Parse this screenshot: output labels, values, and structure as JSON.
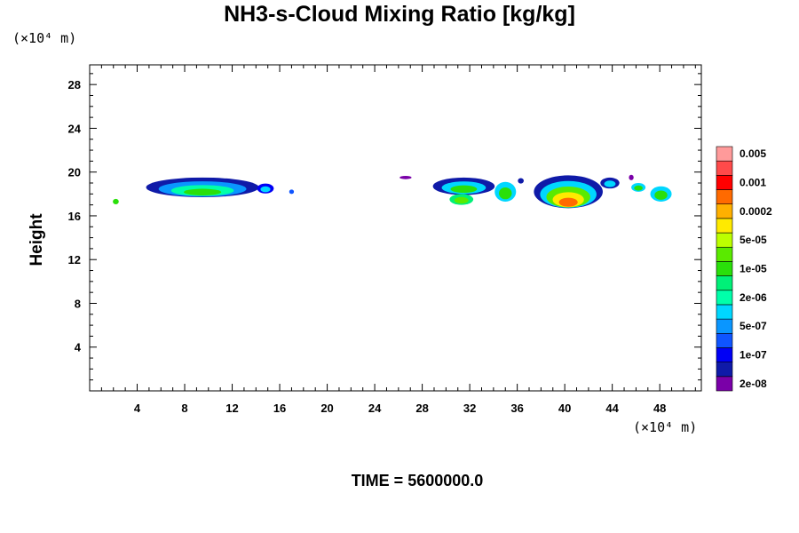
{
  "chart_data": {
    "type": "heatmap",
    "title": "NH3-s-Cloud Mixing Ratio [kg/kg]",
    "xunit": "(×10⁴ m)",
    "yunit": "(×10⁴ m)",
    "xlabel": "",
    "ylabel": "Height",
    "xlim": [
      0,
      51.5
    ],
    "ylim": [
      0,
      29.8
    ],
    "xticks": [
      4,
      8,
      12,
      16,
      20,
      24,
      28,
      32,
      36,
      40,
      44,
      48
    ],
    "yticks": [
      4,
      8,
      12,
      16,
      20,
      24,
      28
    ],
    "colorbar": {
      "levels": [
        {
          "color": "#7a00a8",
          "label": "2e-08"
        },
        {
          "color": "#0f1aa8",
          "label": ""
        },
        {
          "color": "#0000f5",
          "label": "1e-07"
        },
        {
          "color": "#0f55ff",
          "label": ""
        },
        {
          "color": "#0a96ff",
          "label": "5e-07"
        },
        {
          "color": "#00d7ff",
          "label": ""
        },
        {
          "color": "#00ffaa",
          "label": "2e-06"
        },
        {
          "color": "#00f078",
          "label": ""
        },
        {
          "color": "#2adf0a",
          "label": "1e-05"
        },
        {
          "color": "#5aea00",
          "label": ""
        },
        {
          "color": "#bcff00",
          "label": "5e-05"
        },
        {
          "color": "#ffea00",
          "label": ""
        },
        {
          "color": "#ffb000",
          "label": "0.0002"
        },
        {
          "color": "#ff6a00",
          "label": ""
        },
        {
          "color": "#ff0000",
          "label": "0.001"
        },
        {
          "color": "#ff4a4a",
          "label": ""
        },
        {
          "color": "#ff9a9a",
          "label": "0.005"
        }
      ]
    },
    "clouds": [
      {
        "x": 2.2,
        "y": 17.3,
        "w": 0.5,
        "h": 0.5,
        "colors": [
          "#2adf0a"
        ]
      },
      {
        "x": 9.5,
        "y": 18.6,
        "w": 9.5,
        "h": 1.8,
        "colors": [
          "#0f1aa8",
          "#0a96ff",
          "#00ffaa",
          "#2adf0a"
        ]
      },
      {
        "x": 14.8,
        "y": 18.5,
        "w": 1.4,
        "h": 0.9,
        "colors": [
          "#0000f5",
          "#00d7ff"
        ]
      },
      {
        "x": 17.0,
        "y": 18.2,
        "w": 0.4,
        "h": 0.4,
        "colors": [
          "#0f55ff"
        ]
      },
      {
        "x": 26.6,
        "y": 19.5,
        "w": 1.0,
        "h": 0.3,
        "colors": [
          "#7a00a8"
        ]
      },
      {
        "x": 31.5,
        "y": 18.7,
        "w": 5.2,
        "h": 1.6,
        "colors": [
          "#0f1aa8",
          "#00d7ff",
          "#2adf0a"
        ]
      },
      {
        "x": 31.3,
        "y": 17.5,
        "w": 2.0,
        "h": 1.0,
        "colors": [
          "#00f078",
          "#5aea00"
        ]
      },
      {
        "x": 35.0,
        "y": 18.2,
        "w": 1.8,
        "h": 1.8,
        "colors": [
          "#00d7ff",
          "#2adf0a"
        ]
      },
      {
        "x": 36.3,
        "y": 19.2,
        "w": 0.5,
        "h": 0.5,
        "colors": [
          "#0f1aa8"
        ]
      },
      {
        "x": 40.3,
        "y": 18.2,
        "w": 5.8,
        "h": 3.0,
        "colors": [
          "#0f1aa8",
          "#00d7ff",
          "#5aea00",
          "#ffea00",
          "#ff6a00"
        ]
      },
      {
        "x": 43.8,
        "y": 19.0,
        "w": 1.6,
        "h": 1.0,
        "colors": [
          "#0f1aa8",
          "#00d7ff"
        ]
      },
      {
        "x": 45.6,
        "y": 19.5,
        "w": 0.4,
        "h": 0.5,
        "colors": [
          "#7a00a8"
        ]
      },
      {
        "x": 46.2,
        "y": 18.6,
        "w": 1.2,
        "h": 0.8,
        "colors": [
          "#00d7ff",
          "#2adf0a"
        ]
      },
      {
        "x": 48.1,
        "y": 18.0,
        "w": 1.8,
        "h": 1.4,
        "colors": [
          "#00d7ff",
          "#2adf0a"
        ]
      }
    ]
  },
  "footer": "TIME = 5600000.0"
}
